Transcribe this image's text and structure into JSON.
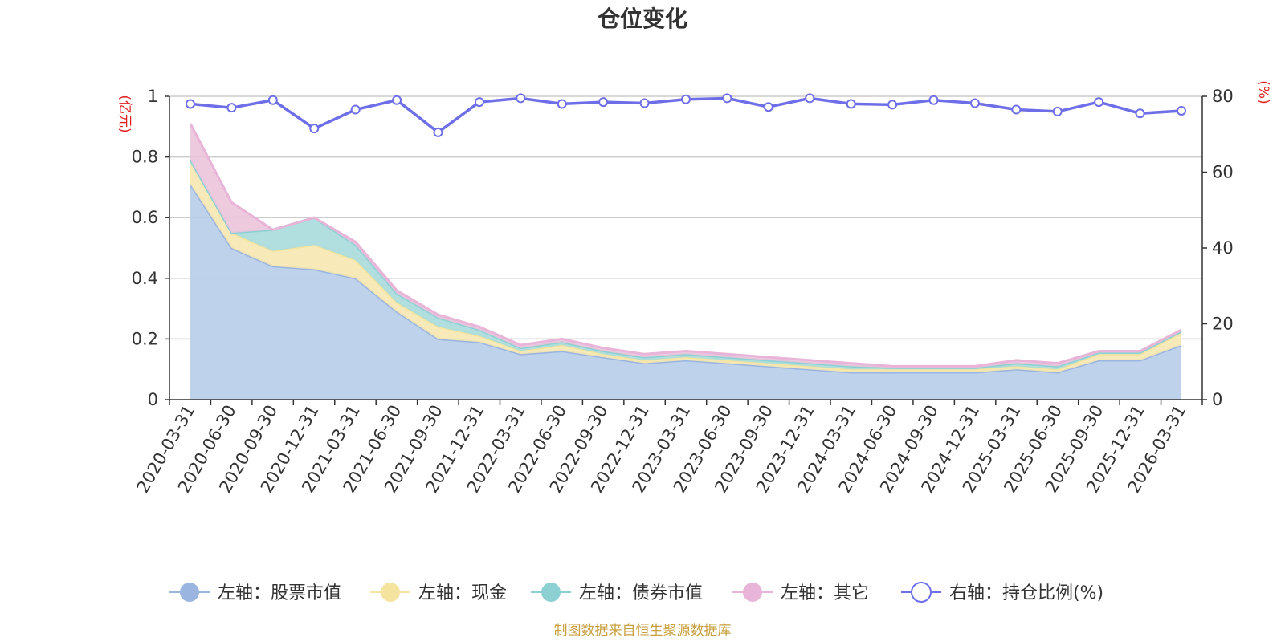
{
  "chart_data": {
    "type": "area",
    "title": "仓位变化",
    "source_note": "制图数据来自恒生聚源数据库",
    "left_axis": {
      "unit": "(亿元)",
      "ylim": [
        0,
        1
      ],
      "ticks": [
        "0",
        "0.2",
        "0.4",
        "0.6",
        "0.8",
        "1"
      ],
      "tick_values": [
        0,
        0.2,
        0.4,
        0.6,
        0.8,
        1
      ]
    },
    "right_axis": {
      "unit": "(%)",
      "ylim": [
        0,
        80
      ],
      "ticks": [
        "0",
        "20",
        "40",
        "60",
        "80"
      ],
      "tick_values": [
        0,
        20,
        40,
        60,
        80
      ]
    },
    "categories": [
      "2020-03-31",
      "2020-06-30",
      "2020-09-30",
      "2020-12-31",
      "2021-03-31",
      "2021-06-30",
      "2021-09-30",
      "2021-12-31",
      "2022-03-31",
      "2022-06-30",
      "2022-09-30",
      "2022-12-31",
      "2023-03-31",
      "2023-06-30",
      "2023-09-30",
      "2023-12-31",
      "2024-03-31",
      "2024-06-30",
      "2024-09-30",
      "2024-12-31",
      "2025-03-31",
      "2025-06-30",
      "2025-09-30",
      "2025-12-31",
      "2026-03-31"
    ],
    "series": [
      {
        "name": "左轴：股票市值",
        "axis": "left",
        "color": "#9ab5e0",
        "fill": "#b8cdea",
        "values": [
          0.71,
          0.5,
          0.44,
          0.43,
          0.4,
          0.29,
          0.2,
          0.19,
          0.15,
          0.16,
          0.14,
          0.12,
          0.13,
          0.12,
          0.11,
          0.1,
          0.09,
          0.09,
          0.09,
          0.09,
          0.1,
          0.09,
          0.13,
          0.13,
          0.18
        ]
      },
      {
        "name": "左轴：现金",
        "axis": "left",
        "color": "#f5e4a0",
        "fill": "#f7e8b0",
        "values": [
          0.08,
          0.05,
          0.05,
          0.08,
          0.06,
          0.03,
          0.04,
          0.02,
          0.01,
          0.02,
          0.01,
          0.01,
          0.01,
          0.01,
          0.01,
          0.01,
          0.01,
          0.01,
          0.01,
          0.01,
          0.01,
          0.01,
          0.02,
          0.02,
          0.04
        ]
      },
      {
        "name": "左轴：债券市值",
        "axis": "left",
        "color": "#8dd0d4",
        "fill": "#a8dcdc",
        "values": [
          0,
          0,
          0.07,
          0.09,
          0.05,
          0.03,
          0.03,
          0.02,
          0.01,
          0.01,
          0.01,
          0.01,
          0.01,
          0.01,
          0.01,
          0.01,
          0.01,
          0.005,
          0.005,
          0.005,
          0.01,
          0.01,
          0.005,
          0.005,
          0.005
        ]
      },
      {
        "name": "左轴：其它",
        "axis": "left",
        "color": "#e8b4d8",
        "fill": "#ecc4dc",
        "values": [
          0.12,
          0.1,
          0,
          0,
          0.01,
          0.01,
          0.01,
          0.01,
          0.01,
          0.01,
          0.01,
          0.01,
          0.01,
          0.01,
          0.01,
          0.01,
          0.01,
          0.005,
          0.005,
          0.005,
          0.01,
          0.01,
          0.005,
          0.005,
          0.005
        ]
      },
      {
        "name": "右轴：持仓比例(%)",
        "axis": "right",
        "color": "#6e6ee8",
        "values": [
          78,
          77,
          79,
          71.5,
          76.5,
          79,
          70.5,
          78.5,
          79.5,
          78,
          78.5,
          78.2,
          79.2,
          79.5,
          77.2,
          79.5,
          78,
          77.8,
          79,
          78.2,
          76.5,
          76,
          78.5,
          75.5,
          76.2
        ]
      }
    ]
  }
}
